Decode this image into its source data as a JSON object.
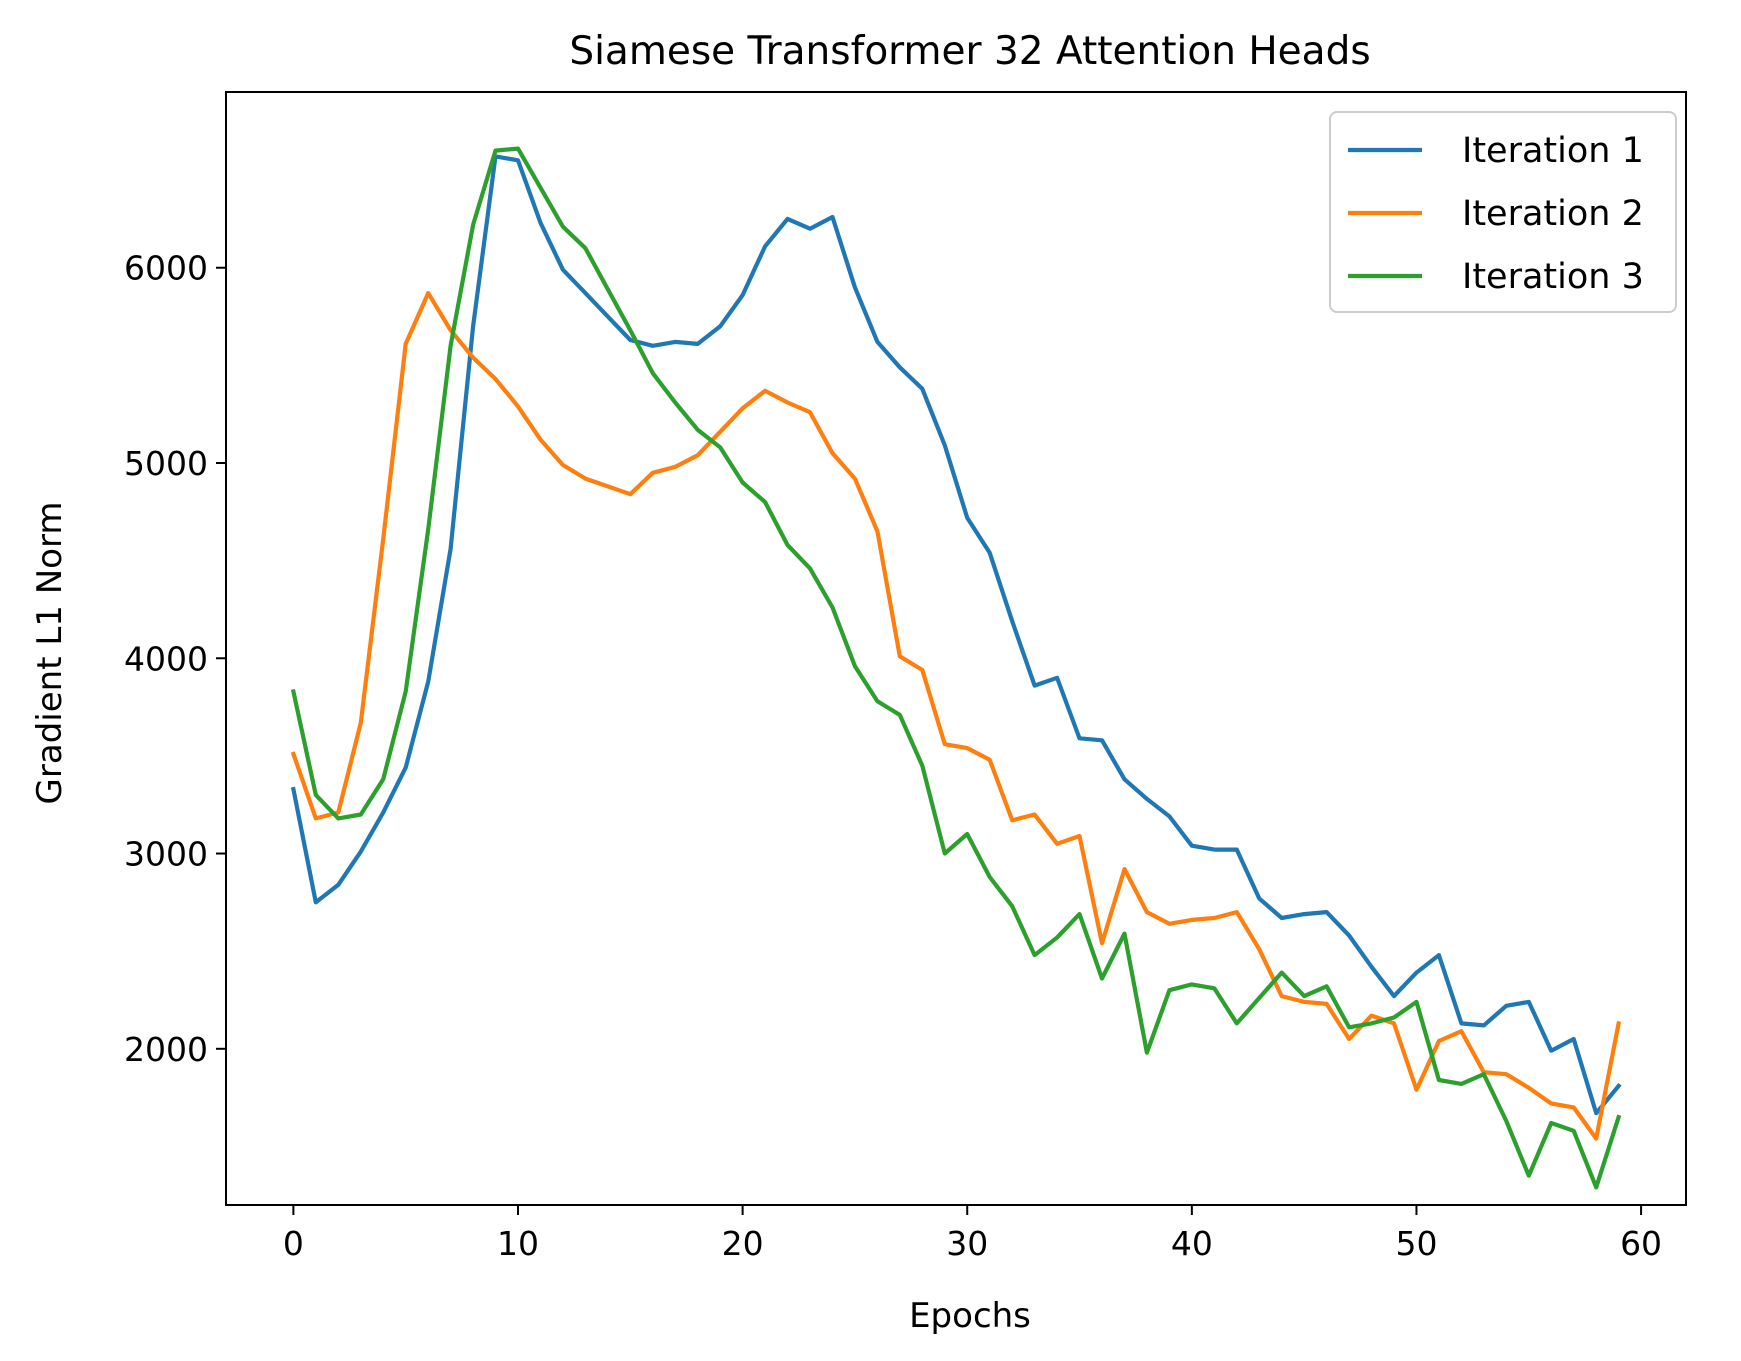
{
  "chart_data": {
    "type": "line",
    "title": "Siamese Transformer 32 Attention Heads",
    "xlabel": "Epochs",
    "ylabel": "Gradient L1 Norm",
    "xlim": [
      -3,
      62
    ],
    "ylim": [
      1200,
      6900
    ],
    "xticks": [
      0,
      10,
      20,
      30,
      40,
      50,
      60
    ],
    "yticks": [
      2000,
      3000,
      4000,
      5000,
      6000
    ],
    "grid": false,
    "legend_position": "top-right",
    "x": [
      0,
      1,
      2,
      3,
      4,
      5,
      6,
      7,
      8,
      9,
      10,
      11,
      12,
      13,
      14,
      15,
      16,
      17,
      18,
      19,
      20,
      21,
      22,
      23,
      24,
      25,
      26,
      27,
      28,
      29,
      30,
      31,
      32,
      33,
      34,
      35,
      36,
      37,
      38,
      39,
      40,
      41,
      42,
      43,
      44,
      45,
      46,
      47,
      48,
      49,
      50,
      51,
      52,
      53,
      54,
      55,
      56,
      57,
      58,
      59
    ],
    "series": [
      {
        "name": "Iteration 1",
        "color": "#1f77b4",
        "values": [
          3330,
          2750,
          2840,
          3010,
          3210,
          3440,
          3880,
          4560,
          5700,
          6570,
          6550,
          6230,
          5990,
          5870,
          5750,
          5630,
          5600,
          5620,
          5610,
          5700,
          5860,
          6110,
          6250,
          6200,
          6260,
          5900,
          5620,
          5490,
          5380,
          5090,
          4720,
          4540,
          4190,
          3860,
          3900,
          3590,
          3580,
          3380,
          3280,
          3190,
          3040,
          3020,
          3020,
          2770,
          2670,
          2690,
          2700,
          2580,
          2420,
          2270,
          2390,
          2480,
          2130,
          2120,
          2220,
          2240,
          1990,
          2050,
          1670,
          1810
        ]
      },
      {
        "name": "Iteration 2",
        "color": "#ff7f0e",
        "values": [
          3510,
          3180,
          3210,
          3670,
          4610,
          5610,
          5870,
          5680,
          5540,
          5430,
          5290,
          5120,
          4990,
          4920,
          4880,
          4840,
          4950,
          4980,
          5040,
          5160,
          5280,
          5370,
          5310,
          5260,
          5050,
          4920,
          4650,
          4010,
          3940,
          3560,
          3540,
          3480,
          3170,
          3200,
          3050,
          3090,
          2540,
          2920,
          2700,
          2640,
          2660,
          2670,
          2700,
          2510,
          2270,
          2240,
          2230,
          2050,
          2170,
          2130,
          1790,
          2040,
          2090,
          1880,
          1870,
          1800,
          1720,
          1700,
          1540,
          2130
        ]
      },
      {
        "name": "Iteration 3",
        "color": "#2ca02c",
        "values": [
          3830,
          3300,
          3180,
          3200,
          3380,
          3830,
          4660,
          5600,
          6220,
          6600,
          6610,
          6410,
          6210,
          6100,
          5890,
          5680,
          5460,
          5310,
          5170,
          5080,
          4900,
          4800,
          4580,
          4460,
          4260,
          3960,
          3780,
          3710,
          3450,
          3000,
          3100,
          2880,
          2730,
          2480,
          2570,
          2690,
          2360,
          2590,
          1980,
          2300,
          2330,
          2310,
          2130,
          2260,
          2390,
          2270,
          2320,
          2110,
          2130,
          2160,
          2240,
          1840,
          1820,
          1870,
          1630,
          1350,
          1620,
          1580,
          1290,
          1650
        ]
      }
    ]
  }
}
